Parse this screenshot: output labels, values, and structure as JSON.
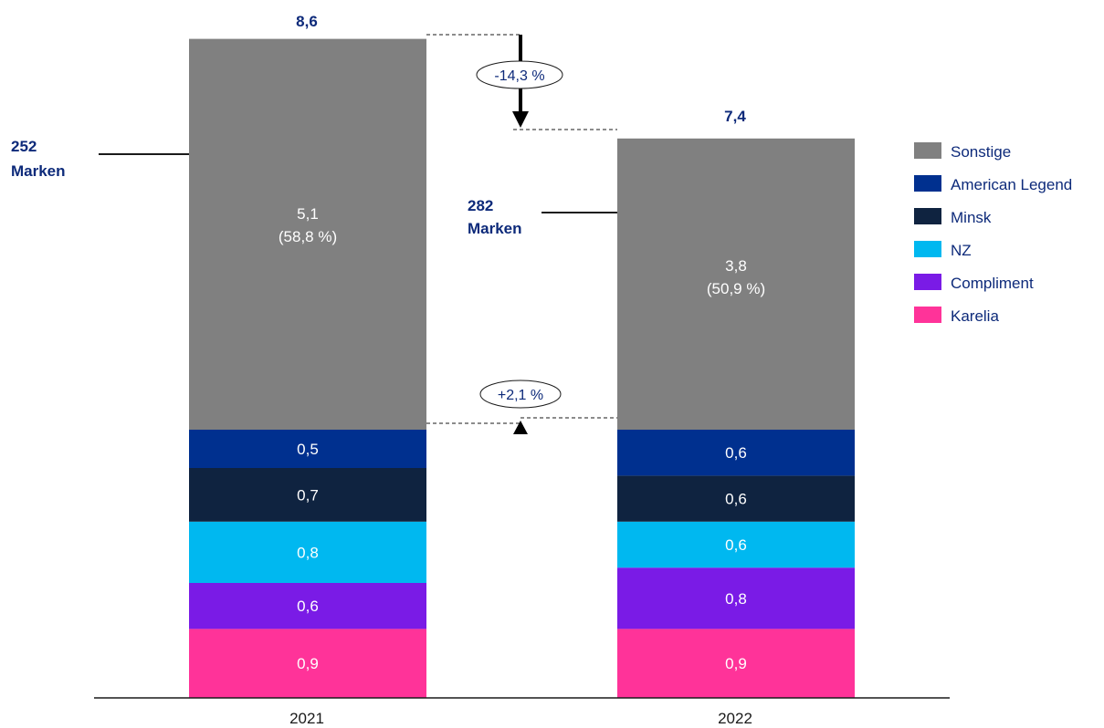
{
  "chart_data": {
    "type": "bar",
    "stacked": true,
    "categories": [
      "2021",
      "2022"
    ],
    "series": [
      {
        "name": "Karelia",
        "color": "#ff3399",
        "values": [
          0.9,
          0.9
        ],
        "labels": [
          "0,9",
          "0,9"
        ]
      },
      {
        "name": "Compliment",
        "color": "#7a1be6",
        "values": [
          0.6,
          0.8
        ],
        "labels": [
          "0,6",
          "0,8"
        ]
      },
      {
        "name": "NZ",
        "color": "#00b8f0",
        "values": [
          0.8,
          0.6
        ],
        "labels": [
          "0,8",
          "0,6"
        ]
      },
      {
        "name": "Minsk",
        "color": "#0f2340",
        "values": [
          0.7,
          0.6
        ],
        "labels": [
          "0,7",
          "0,6"
        ]
      },
      {
        "name": "American Legend",
        "color": "#00308f",
        "values": [
          0.5,
          0.6
        ],
        "labels": [
          "0,5",
          "0,6"
        ]
      },
      {
        "name": "Sonstige",
        "color": "#808080",
        "values": [
          5.1,
          3.8
        ],
        "labels": [
          "5,1",
          "3,8"
        ],
        "shares": [
          "(58,8 %)",
          "(50,9 %)"
        ]
      }
    ],
    "legend_order": [
      "Sonstige",
      "American Legend",
      "Minsk",
      "NZ",
      "Compliment",
      "Karelia"
    ],
    "totals": [
      8.6,
      7.4
    ],
    "total_labels": [
      "8,6",
      "7,4"
    ],
    "brand_counts": [
      {
        "number": "252",
        "word": "Marken"
      },
      {
        "number": "282",
        "word": "Marken"
      }
    ],
    "annotations": {
      "total_change": "-14,3 %",
      "top5_change": "+2,1 %"
    },
    "legend_position": "right",
    "grid": false
  }
}
